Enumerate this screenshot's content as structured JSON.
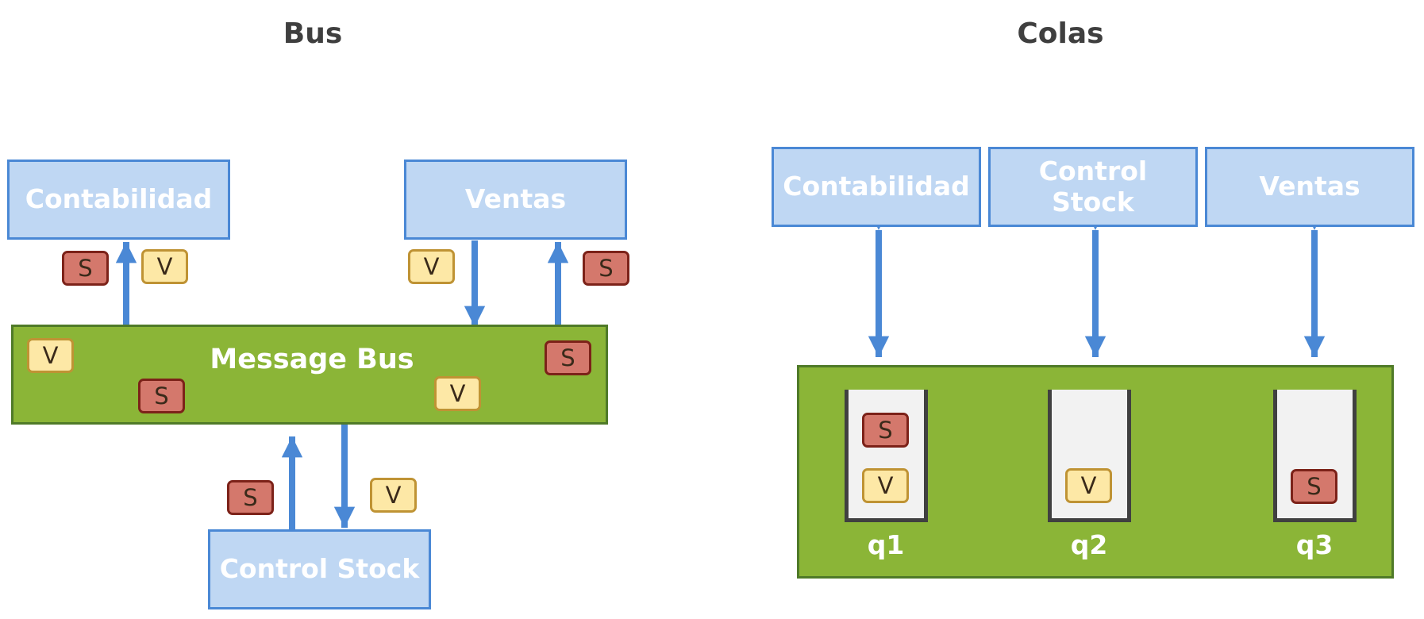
{
  "colors": {
    "service_fill": "#bfd7f3",
    "service_border": "#4a88d5",
    "arrow": "#4a88d5",
    "bus_fill": "#8bb537",
    "bus_border": "#4f7a28",
    "tag_s_fill": "#d4786c",
    "tag_s_border": "#7c2219",
    "tag_v_fill": "#fde8a6",
    "tag_v_border": "#bf9334",
    "queue_fill": "#f2f2f2",
    "queue_border": "#404040"
  },
  "bus_section": {
    "title": "Bus",
    "contabilidad": "Contabilidad",
    "ventas": "Ventas",
    "control_stock": "Control Stock",
    "message_bus": "Message Bus"
  },
  "colas_section": {
    "title": "Colas",
    "contabilidad": "Contabilidad",
    "control_stock": "Control Stock",
    "ventas": "Ventas",
    "queues": [
      "q1",
      "q2",
      "q3"
    ]
  },
  "tags": {
    "s": "S",
    "v": "V"
  }
}
